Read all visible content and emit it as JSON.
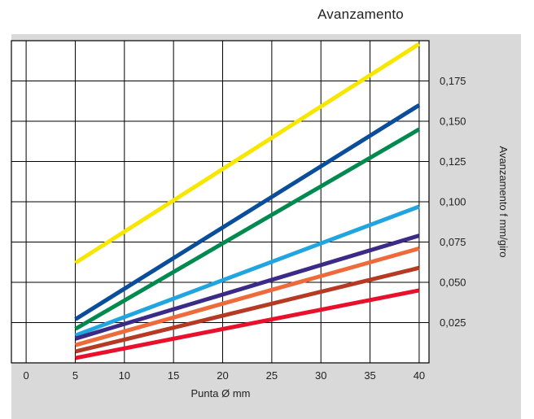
{
  "chart_data": {
    "type": "line",
    "title": "Avanzamento",
    "xlabel": "Punta Ø mm",
    "ylabel": "Avanzamento f mm/giro",
    "x_ticks": [
      0,
      5,
      10,
      15,
      20,
      25,
      30,
      35,
      40
    ],
    "y_ticks": [
      0.025,
      0.05,
      0.075,
      0.1,
      0.125,
      0.15,
      0.175
    ],
    "y_tick_labels": [
      "0,025",
      "0,050",
      "0,075",
      "0,100",
      "0,125",
      "0,150",
      "0,175"
    ],
    "xlim": [
      -1.5,
      41
    ],
    "ylim": [
      0,
      0.2
    ],
    "grid": true,
    "legend": "none",
    "series": [
      {
        "color": "#f7e600",
        "x": [
          5,
          40
        ],
        "y": [
          0.062,
          0.198
        ]
      },
      {
        "color": "#0a4d9a",
        "x": [
          5,
          40
        ],
        "y": [
          0.027,
          0.16
        ]
      },
      {
        "color": "#008a4f",
        "x": [
          5,
          40
        ],
        "y": [
          0.021,
          0.145
        ]
      },
      {
        "color": "#21a5e0",
        "x": [
          5,
          40
        ],
        "y": [
          0.017,
          0.097
        ]
      },
      {
        "color": "#3b2a86",
        "x": [
          5,
          40
        ],
        "y": [
          0.015,
          0.079
        ]
      },
      {
        "color": "#ee6a3a",
        "x": [
          5,
          40
        ],
        "y": [
          0.011,
          0.071
        ]
      },
      {
        "color": "#b63a23",
        "x": [
          5,
          40
        ],
        "y": [
          0.007,
          0.059
        ]
      },
      {
        "color": "#e8102a",
        "x": [
          5,
          40
        ],
        "y": [
          0.003,
          0.045
        ]
      }
    ]
  }
}
